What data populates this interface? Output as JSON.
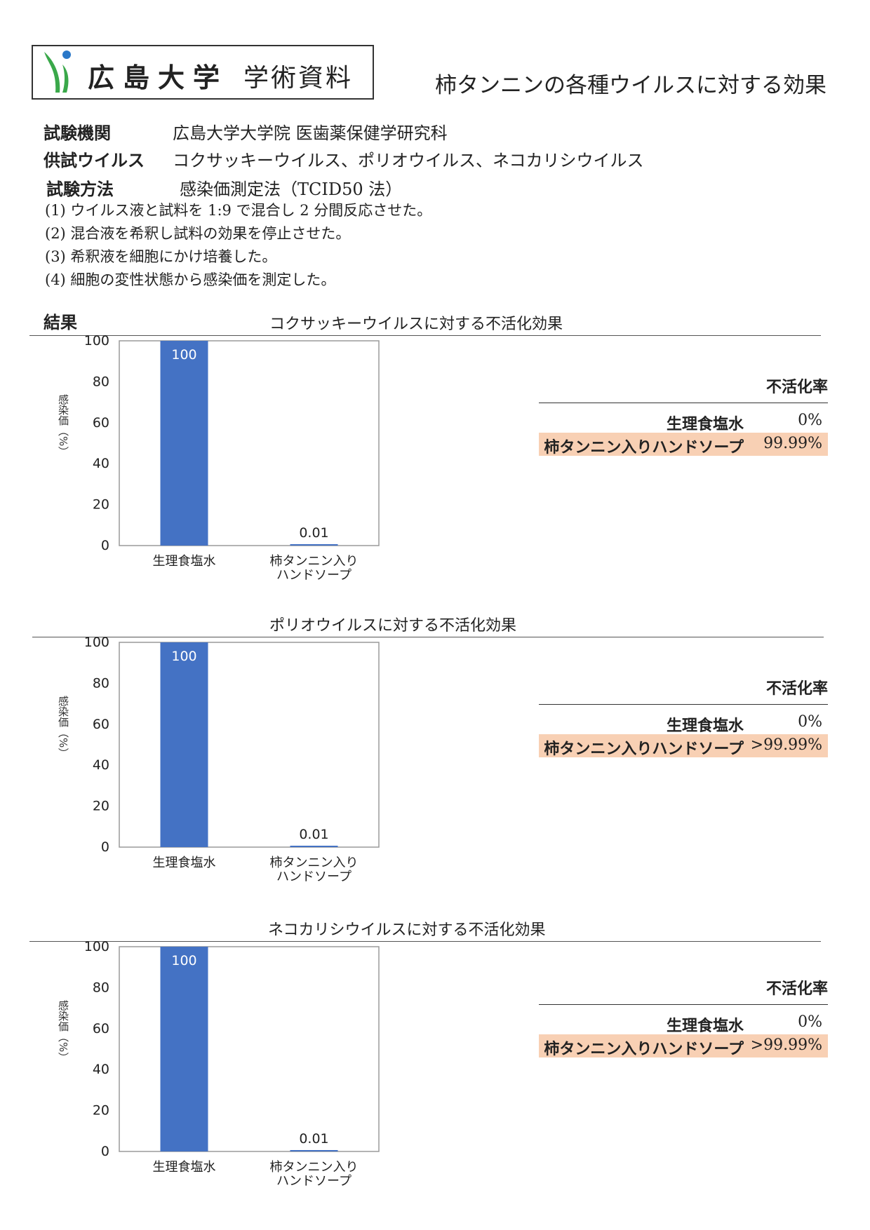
{
  "header": {
    "university": "広島大学",
    "doc_kind": "学術資料",
    "title": "柿タンニンの各種ウイルスに対する効果"
  },
  "info": {
    "institution_label": "試験機関",
    "institution_value": "広島大学大学院 医歯薬保健学研究科",
    "virus_label": "供試ウイルス",
    "virus_value": "コクサッキーウイルス、ポリオウイルス、ネコカリシウイルス",
    "method_label": "試験方法",
    "method_value": "感染価測定法（TCID50 法）",
    "steps": [
      "(1) ウイルス液と試料を 1:9 で混合し 2 分間反応させた。",
      "(2) 混合液を希釈し試料の効果を停止させた。",
      "(3) 希釈液を細胞にかけ培養した。",
      "(4) 細胞の変性状態から感染価を測定した。"
    ]
  },
  "results_heading": "結果",
  "sections": [
    {
      "title": "コクサッキーウイルスに対する不活化効果",
      "rate_title": "不活化率",
      "rates": [
        {
          "name": "生理食塩水",
          "value": "0%"
        },
        {
          "name": "柿タンニン入りハンドソープ",
          "value": "99.99%"
        }
      ]
    },
    {
      "title": "ポリオウイルスに対する不活化効果",
      "rate_title": "不活化率",
      "rates": [
        {
          "name": "生理食塩水",
          "value": "0%"
        },
        {
          "name": "柿タンニン入りハンドソープ",
          "value": ">99.99%"
        }
      ]
    },
    {
      "title": "ネコカリシウイルスに対する不活化効果",
      "rate_title": "不活化率",
      "rates": [
        {
          "name": "生理食塩水",
          "value": "0%"
        },
        {
          "name": "柿タンニン入りハンドソープ",
          "value": ">99.99%"
        }
      ]
    }
  ],
  "chart_data": [
    {
      "type": "bar",
      "categories": [
        "生理食塩水",
        "柿タンニン入り\nハンドソープ"
      ],
      "values": [
        100,
        0.01
      ],
      "data_labels": [
        "100",
        "0.01"
      ],
      "ylabel": "感染価（%）",
      "ylim": [
        0,
        100
      ],
      "yticks": [
        0,
        20,
        40,
        60,
        80,
        100
      ],
      "bar_color": "#4472c4",
      "grid": false
    },
    {
      "type": "bar",
      "categories": [
        "生理食塩水",
        "柿タンニン入り\nハンドソープ"
      ],
      "values": [
        100,
        0.01
      ],
      "data_labels": [
        "100",
        "0.01"
      ],
      "ylabel": "感染価（%）",
      "ylim": [
        0,
        100
      ],
      "yticks": [
        0,
        20,
        40,
        60,
        80,
        100
      ],
      "bar_color": "#4472c4",
      "grid": false
    },
    {
      "type": "bar",
      "categories": [
        "生理食塩水",
        "柿タンニン入り\nハンドソープ"
      ],
      "values": [
        100,
        0.01
      ],
      "data_labels": [
        "100",
        "0.01"
      ],
      "ylabel": "感染価（%）",
      "ylim": [
        0,
        100
      ],
      "yticks": [
        0,
        20,
        40,
        60,
        80,
        100
      ],
      "bar_color": "#4472c4",
      "grid": false
    }
  ]
}
